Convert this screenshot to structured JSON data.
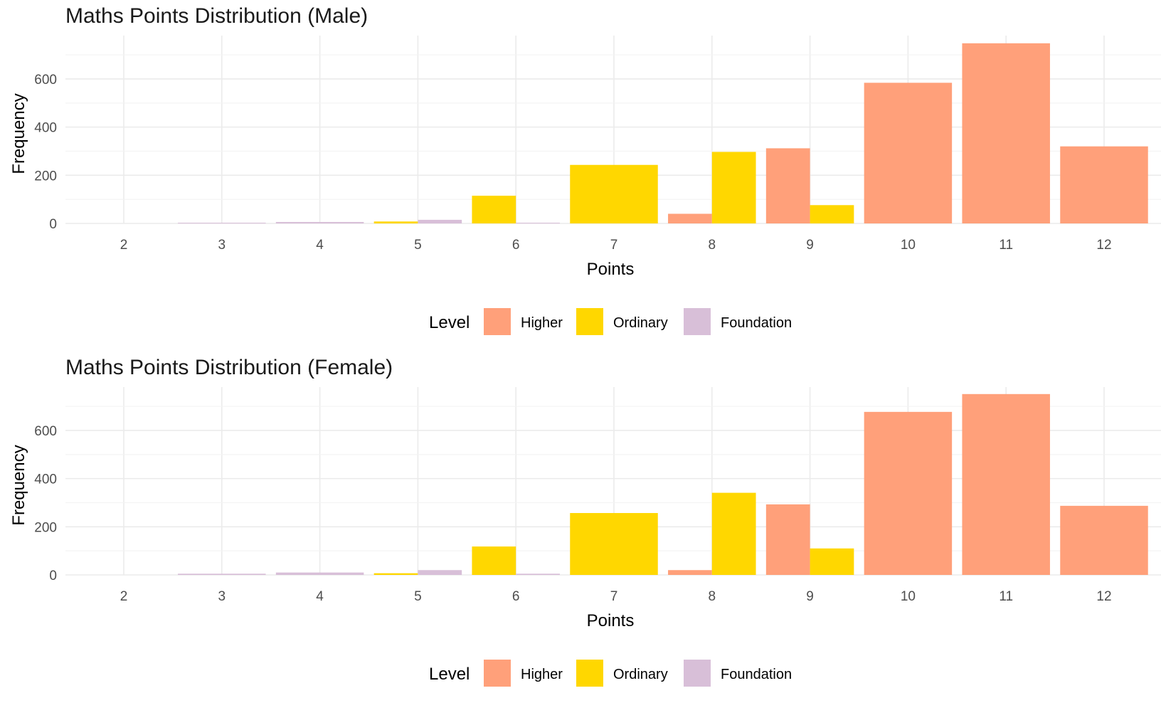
{
  "chart_data": [
    {
      "type": "bar",
      "title": "Maths Points Distribution (Male)",
      "xlabel": "Points",
      "ylabel": "Frequency",
      "categories": [
        "2",
        "3",
        "4",
        "5",
        "6",
        "7",
        "8",
        "9",
        "10",
        "11",
        "12"
      ],
      "x_ticks": [
        "2",
        "3",
        "4",
        "5",
        "6",
        "7",
        "8",
        "9",
        "10",
        "11",
        "12"
      ],
      "y_ticks": [
        "0",
        "200",
        "400",
        "600"
      ],
      "ylim": [
        0,
        780
      ],
      "grid": true,
      "legend_title": "Level",
      "legend_position": "bottom",
      "series": [
        {
          "name": "Higher",
          "color": "#FFA07A",
          "bars": [
            {
              "x": 8,
              "value": 40
            },
            {
              "x": 9,
              "value": 312
            },
            {
              "x": 10,
              "value": 584
            },
            {
              "x": 11,
              "value": 748
            },
            {
              "x": 12,
              "value": 320
            }
          ]
        },
        {
          "name": "Ordinary",
          "color": "#FFD700",
          "bars": [
            {
              "x": 5,
              "value": 8
            },
            {
              "x": 6,
              "value": 115
            },
            {
              "x": 7,
              "value": 243
            },
            {
              "x": 8,
              "value": 297
            },
            {
              "x": 9,
              "value": 76
            }
          ]
        },
        {
          "name": "Foundation",
          "color": "#D8BFD8",
          "bars": [
            {
              "x": 3,
              "value": 3
            },
            {
              "x": 4,
              "value": 6
            },
            {
              "x": 5,
              "value": 15
            },
            {
              "x": 6,
              "value": 3
            }
          ]
        }
      ]
    },
    {
      "type": "bar",
      "title": "Maths Points Distribution (Female)",
      "xlabel": "Points",
      "ylabel": "Frequency",
      "categories": [
        "2",
        "3",
        "4",
        "5",
        "6",
        "7",
        "8",
        "9",
        "10",
        "11",
        "12"
      ],
      "x_ticks": [
        "2",
        "3",
        "4",
        "5",
        "6",
        "7",
        "8",
        "9",
        "10",
        "11",
        "12"
      ],
      "y_ticks": [
        "0",
        "200",
        "400",
        "600"
      ],
      "ylim": [
        0,
        780
      ],
      "grid": true,
      "legend_title": "Level",
      "legend_position": "bottom",
      "series": [
        {
          "name": "Higher",
          "color": "#FFA07A",
          "bars": [
            {
              "x": 8,
              "value": 20
            },
            {
              "x": 9,
              "value": 293
            },
            {
              "x": 10,
              "value": 677
            },
            {
              "x": 11,
              "value": 751
            },
            {
              "x": 12,
              "value": 287
            }
          ]
        },
        {
          "name": "Ordinary",
          "color": "#FFD700",
          "bars": [
            {
              "x": 5,
              "value": 7
            },
            {
              "x": 6,
              "value": 118
            },
            {
              "x": 7,
              "value": 257
            },
            {
              "x": 8,
              "value": 341
            },
            {
              "x": 9,
              "value": 110
            }
          ]
        },
        {
          "name": "Foundation",
          "color": "#D8BFD8",
          "bars": [
            {
              "x": 3,
              "value": 5
            },
            {
              "x": 4,
              "value": 10
            },
            {
              "x": 5,
              "value": 20
            },
            {
              "x": 6,
              "value": 5
            }
          ]
        }
      ]
    }
  ]
}
